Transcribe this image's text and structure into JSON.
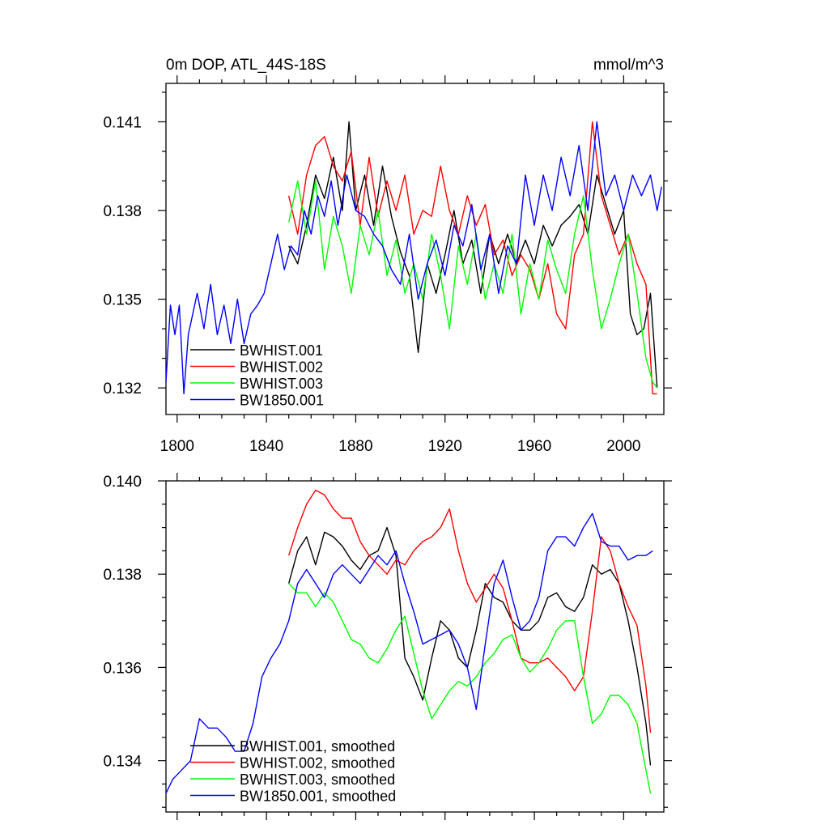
{
  "chart_data": [
    {
      "type": "line",
      "title": "0m DOP, ATL_44S-18S",
      "units": "mmol/m^3",
      "xlim": [
        1795,
        2018
      ],
      "ylim": [
        0.1311,
        0.1423
      ],
      "xticks": [
        1800,
        1840,
        1880,
        1920,
        1960,
        2000
      ],
      "yticks": [
        0.132,
        0.135,
        0.138,
        0.141
      ],
      "ytick_labels": [
        "0.132",
        "0.135",
        "0.138",
        "0.141"
      ],
      "legend_position": "bottom-left",
      "series": [
        {
          "name": "BWHIST.001",
          "color": "#000000",
          "x": [
            1850,
            1854,
            1858,
            1862,
            1866,
            1870,
            1874,
            1877,
            1880,
            1884,
            1888,
            1892,
            1896,
            1900,
            1904,
            1908,
            1912,
            1916,
            1920,
            1924,
            1928,
            1932,
            1936,
            1940,
            1944,
            1948,
            1952,
            1956,
            1960,
            1964,
            1968,
            1972,
            1976,
            1980,
            1984,
            1988,
            1992,
            1996,
            2000,
            2003,
            2006,
            2009,
            2012,
            2015
          ],
          "y": [
            0.1368,
            0.1362,
            0.1375,
            0.1392,
            0.1384,
            0.1398,
            0.138,
            0.141,
            0.138,
            0.1392,
            0.1375,
            0.1395,
            0.1378,
            0.1366,
            0.1358,
            0.1332,
            0.1362,
            0.1352,
            0.1365,
            0.138,
            0.1362,
            0.137,
            0.1352,
            0.1372,
            0.1362,
            0.1372,
            0.1362,
            0.137,
            0.1362,
            0.1375,
            0.1368,
            0.1375,
            0.1378,
            0.1382,
            0.1372,
            0.1392,
            0.1382,
            0.1372,
            0.138,
            0.1345,
            0.1338,
            0.134,
            0.1352,
            0.132
          ]
        },
        {
          "name": "BWHIST.002",
          "color": "#ff0000",
          "x": [
            1850,
            1854,
            1858,
            1862,
            1866,
            1870,
            1874,
            1878,
            1882,
            1886,
            1890,
            1894,
            1898,
            1902,
            1906,
            1910,
            1914,
            1918,
            1922,
            1926,
            1930,
            1934,
            1938,
            1942,
            1946,
            1950,
            1954,
            1958,
            1962,
            1966,
            1970,
            1974,
            1978,
            1982,
            1986,
            1990,
            1994,
            1998,
            2002,
            2006,
            2010,
            2013,
            2015
          ],
          "y": [
            0.1385,
            0.1372,
            0.1392,
            0.1402,
            0.1405,
            0.1395,
            0.139,
            0.14,
            0.1375,
            0.1398,
            0.1378,
            0.139,
            0.138,
            0.1392,
            0.1372,
            0.138,
            0.1378,
            0.1395,
            0.138,
            0.1372,
            0.1385,
            0.1375,
            0.1382,
            0.1365,
            0.137,
            0.1358,
            0.1365,
            0.136,
            0.135,
            0.1362,
            0.1345,
            0.134,
            0.1365,
            0.1372,
            0.141,
            0.1385,
            0.1375,
            0.1365,
            0.1372,
            0.1362,
            0.1355,
            0.1318,
            0.1318
          ]
        },
        {
          "name": "BWHIST.003",
          "color": "#00ff00",
          "x": [
            1850,
            1854,
            1858,
            1862,
            1866,
            1870,
            1874,
            1878,
            1882,
            1886,
            1890,
            1894,
            1898,
            1902,
            1906,
            1910,
            1914,
            1918,
            1922,
            1926,
            1930,
            1934,
            1938,
            1942,
            1946,
            1950,
            1954,
            1958,
            1962,
            1966,
            1970,
            1974,
            1978,
            1982,
            1986,
            1990,
            1994,
            1998,
            2002,
            2006,
            2010,
            2013,
            2015
          ],
          "y": [
            0.1376,
            0.139,
            0.1372,
            0.139,
            0.136,
            0.1378,
            0.1368,
            0.1352,
            0.1375,
            0.1365,
            0.138,
            0.1358,
            0.137,
            0.1352,
            0.1362,
            0.135,
            0.1372,
            0.1358,
            0.134,
            0.1368,
            0.1355,
            0.1372,
            0.135,
            0.1362,
            0.1352,
            0.1372,
            0.1345,
            0.1362,
            0.135,
            0.137,
            0.136,
            0.1352,
            0.1372,
            0.1385,
            0.136,
            0.134,
            0.135,
            0.1362,
            0.1372,
            0.1352,
            0.133,
            0.1322,
            0.132
          ]
        },
        {
          "name": "BW1850.001",
          "color": "#0000ff",
          "x": [
            1795,
            1797,
            1799,
            1801,
            1803,
            1805,
            1807,
            1809,
            1812,
            1815,
            1818,
            1821,
            1824,
            1827,
            1830,
            1833,
            1836,
            1839,
            1842,
            1845,
            1848,
            1851,
            1854,
            1857,
            1860,
            1863,
            1866,
            1869,
            1872,
            1876,
            1880,
            1884,
            1888,
            1892,
            1896,
            1900,
            1904,
            1908,
            1912,
            1916,
            1920,
            1924,
            1928,
            1932,
            1936,
            1940,
            1944,
            1948,
            1952,
            1956,
            1960,
            1964,
            1968,
            1972,
            1976,
            1980,
            1984,
            1988,
            1992,
            1996,
            2000,
            2004,
            2008,
            2012,
            2015,
            2017
          ],
          "y": [
            0.1322,
            0.1348,
            0.1338,
            0.1348,
            0.1318,
            0.1338,
            0.1345,
            0.1352,
            0.134,
            0.1355,
            0.1338,
            0.1348,
            0.1335,
            0.135,
            0.1335,
            0.1345,
            0.1348,
            0.1352,
            0.1362,
            0.1372,
            0.136,
            0.1368,
            0.1365,
            0.138,
            0.1372,
            0.1385,
            0.1378,
            0.139,
            0.1375,
            0.1392,
            0.138,
            0.1378,
            0.1372,
            0.1368,
            0.136,
            0.1355,
            0.1372,
            0.135,
            0.1362,
            0.137,
            0.1358,
            0.1375,
            0.1368,
            0.1382,
            0.136,
            0.1372,
            0.1352,
            0.1368,
            0.1362,
            0.1392,
            0.1375,
            0.1392,
            0.138,
            0.1398,
            0.1385,
            0.1402,
            0.138,
            0.141,
            0.1385,
            0.1392,
            0.138,
            0.1392,
            0.1385,
            0.1392,
            0.138,
            0.1388
          ]
        }
      ]
    },
    {
      "type": "line",
      "title": "",
      "xlim": [
        1795,
        2018
      ],
      "ylim": [
        0.1329,
        0.14
      ],
      "xticks": [
        1800,
        1840,
        1880,
        1920,
        1960,
        2000
      ],
      "yticks": [
        0.134,
        0.136,
        0.138,
        0.14
      ],
      "ytick_labels": [
        "0.134",
        "0.136",
        "0.138",
        "0.140"
      ],
      "legend_position": "bottom-left",
      "series": [
        {
          "name": "BWHIST.001, smoothed",
          "color": "#000000",
          "x": [
            1850,
            1854,
            1858,
            1862,
            1866,
            1870,
            1874,
            1878,
            1882,
            1886,
            1890,
            1894,
            1898,
            1902,
            1906,
            1910,
            1914,
            1918,
            1922,
            1926,
            1930,
            1934,
            1938,
            1942,
            1946,
            1950,
            1954,
            1958,
            1962,
            1966,
            1970,
            1974,
            1978,
            1982,
            1986,
            1990,
            1994,
            1998,
            2002,
            2006,
            2010,
            2012
          ],
          "y": [
            0.1378,
            0.1385,
            0.1388,
            0.1382,
            0.1389,
            0.1388,
            0.1386,
            0.1383,
            0.1381,
            0.1384,
            0.1385,
            0.139,
            0.1384,
            0.1362,
            0.1358,
            0.1353,
            0.1362,
            0.137,
            0.1368,
            0.1362,
            0.136,
            0.1368,
            0.1378,
            0.1375,
            0.1374,
            0.137,
            0.1368,
            0.1368,
            0.137,
            0.1375,
            0.1376,
            0.1373,
            0.1372,
            0.1375,
            0.1382,
            0.138,
            0.1381,
            0.1378,
            0.137,
            0.136,
            0.1348,
            0.1339
          ]
        },
        {
          "name": "BWHIST.002, smoothed",
          "color": "#ff0000",
          "x": [
            1850,
            1854,
            1858,
            1862,
            1866,
            1870,
            1874,
            1878,
            1882,
            1886,
            1890,
            1894,
            1898,
            1902,
            1906,
            1910,
            1914,
            1918,
            1922,
            1926,
            1930,
            1934,
            1938,
            1942,
            1946,
            1950,
            1954,
            1958,
            1962,
            1966,
            1970,
            1974,
            1978,
            1982,
            1986,
            1990,
            1994,
            1998,
            2002,
            2006,
            2010,
            2012
          ],
          "y": [
            0.1384,
            0.139,
            0.1395,
            0.1398,
            0.1397,
            0.1394,
            0.1392,
            0.1392,
            0.1387,
            0.1384,
            0.1382,
            0.138,
            0.1383,
            0.1382,
            0.1385,
            0.1387,
            0.1388,
            0.139,
            0.1394,
            0.1385,
            0.1378,
            0.1374,
            0.1377,
            0.138,
            0.1377,
            0.137,
            0.1362,
            0.1361,
            0.1361,
            0.1362,
            0.136,
            0.1358,
            0.1355,
            0.1358,
            0.1372,
            0.1388,
            0.1385,
            0.1378,
            0.1373,
            0.1369,
            0.1356,
            0.1346
          ]
        },
        {
          "name": "BWHIST.003, smoothed",
          "color": "#00ff00",
          "x": [
            1850,
            1854,
            1858,
            1862,
            1866,
            1870,
            1874,
            1878,
            1882,
            1886,
            1890,
            1894,
            1898,
            1902,
            1906,
            1910,
            1914,
            1918,
            1922,
            1926,
            1930,
            1934,
            1938,
            1942,
            1946,
            1950,
            1954,
            1958,
            1962,
            1966,
            1970,
            1974,
            1978,
            1982,
            1986,
            1990,
            1994,
            1998,
            2002,
            2006,
            2010,
            2012
          ],
          "y": [
            0.1378,
            0.1376,
            0.1376,
            0.1373,
            0.1376,
            0.1374,
            0.137,
            0.1366,
            0.1365,
            0.1362,
            0.1361,
            0.1364,
            0.1368,
            0.1371,
            0.1363,
            0.1355,
            0.1349,
            0.1352,
            0.1355,
            0.1357,
            0.1356,
            0.1358,
            0.1361,
            0.1363,
            0.1366,
            0.1367,
            0.1362,
            0.1359,
            0.1361,
            0.1364,
            0.1368,
            0.137,
            0.137,
            0.1358,
            0.1348,
            0.135,
            0.1354,
            0.1354,
            0.1352,
            0.1348,
            0.1338,
            0.1333
          ]
        },
        {
          "name": "BW1850.001, smoothed",
          "color": "#0000ff",
          "x": [
            1795,
            1798,
            1802,
            1806,
            1810,
            1814,
            1818,
            1822,
            1826,
            1830,
            1834,
            1838,
            1842,
            1846,
            1850,
            1854,
            1858,
            1862,
            1866,
            1870,
            1874,
            1878,
            1882,
            1886,
            1890,
            1894,
            1898,
            1902,
            1906,
            1910,
            1914,
            1918,
            1922,
            1926,
            1930,
            1934,
            1938,
            1942,
            1946,
            1950,
            1954,
            1958,
            1962,
            1966,
            1970,
            1974,
            1978,
            1982,
            1986,
            1990,
            1994,
            1998,
            2002,
            2006,
            2010,
            2013
          ],
          "y": [
            0.1333,
            0.1336,
            0.1338,
            0.134,
            0.1349,
            0.1347,
            0.1347,
            0.1345,
            0.1342,
            0.1342,
            0.1348,
            0.1358,
            0.1362,
            0.1365,
            0.137,
            0.1378,
            0.1381,
            0.1378,
            0.1375,
            0.138,
            0.1382,
            0.138,
            0.1378,
            0.1381,
            0.1384,
            0.1382,
            0.1385,
            0.1378,
            0.1372,
            0.1365,
            0.1366,
            0.1367,
            0.1368,
            0.1365,
            0.136,
            0.1351,
            0.1365,
            0.1378,
            0.1383,
            0.1375,
            0.1368,
            0.137,
            0.1375,
            0.1385,
            0.1388,
            0.1388,
            0.1386,
            0.139,
            0.1393,
            0.1387,
            0.1386,
            0.1386,
            0.1383,
            0.1384,
            0.1384,
            0.1385
          ]
        }
      ]
    }
  ]
}
